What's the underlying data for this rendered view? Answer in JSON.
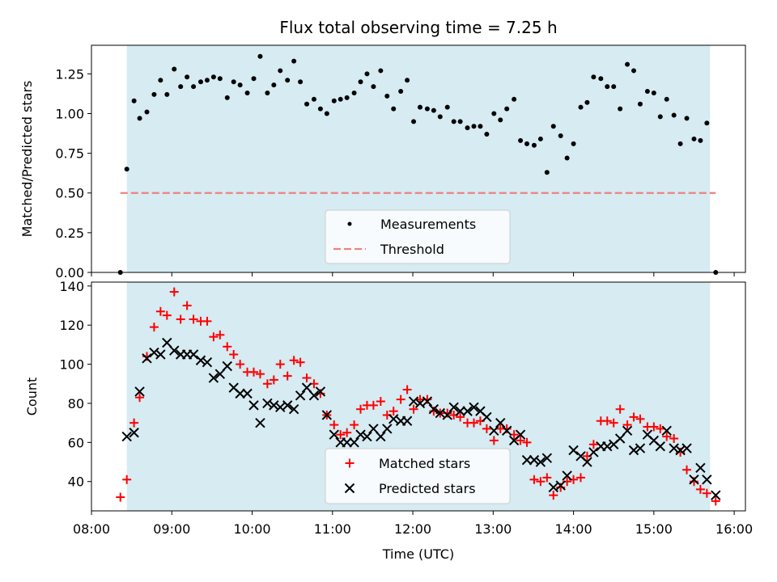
{
  "title": "Flux total observing time = 7.25 h",
  "colors": {
    "shade": "#add8e6",
    "threshold": "#f08080",
    "matched": "#ff0000",
    "predicted": "#000000",
    "measurement": "#000000"
  },
  "chart_data": [
    {
      "type": "scatter",
      "panel": "top",
      "ylabel": "Matched/Predicted stars",
      "ylim": [
        0,
        1.43
      ],
      "yticks": [
        0,
        0.25,
        0.5,
        0.75,
        1.0,
        1.25
      ],
      "ytick_labels": [
        "0.00",
        "0.25",
        "0.50",
        "0.75",
        "1.00",
        "1.25"
      ],
      "xlim": [
        8.0,
        16.14
      ],
      "shaded_span": [
        8.44,
        15.7
      ],
      "legend": {
        "position": "bottom-center",
        "entries": [
          "Measurements",
          "Threshold"
        ]
      },
      "threshold": {
        "name": "Threshold",
        "value": 0.5,
        "x_range": [
          8.36,
          15.77
        ]
      },
      "series": [
        {
          "name": "Measurements",
          "x": [
            8.36,
            8.44,
            8.53,
            8.6,
            8.69,
            8.78,
            8.86,
            8.94,
            9.03,
            9.11,
            9.19,
            9.27,
            9.36,
            9.44,
            9.52,
            9.6,
            9.69,
            9.77,
            9.85,
            9.94,
            10.02,
            10.1,
            10.19,
            10.27,
            10.35,
            10.44,
            10.52,
            10.6,
            10.68,
            10.77,
            10.85,
            10.93,
            11.02,
            11.1,
            11.18,
            11.27,
            11.35,
            11.43,
            11.51,
            11.6,
            11.68,
            11.76,
            11.85,
            11.93,
            12.01,
            12.09,
            12.18,
            12.26,
            12.34,
            12.43,
            12.51,
            12.59,
            12.68,
            12.76,
            12.84,
            12.92,
            13.01,
            13.09,
            13.17,
            13.26,
            13.34,
            13.42,
            13.51,
            13.59,
            13.67,
            13.75,
            13.84,
            13.92,
            14.0,
            14.09,
            14.17,
            14.25,
            14.34,
            14.42,
            14.5,
            14.58,
            14.67,
            14.75,
            14.83,
            14.92,
            15.0,
            15.08,
            15.16,
            15.25,
            15.33,
            15.41,
            15.5,
            15.58,
            15.66,
            15.77
          ],
          "values": [
            0.0,
            0.65,
            1.08,
            0.97,
            1.01,
            1.12,
            1.21,
            1.12,
            1.28,
            1.17,
            1.23,
            1.17,
            1.2,
            1.21,
            1.23,
            1.22,
            1.1,
            1.2,
            1.18,
            1.13,
            1.22,
            1.36,
            1.13,
            1.18,
            1.27,
            1.21,
            1.33,
            1.2,
            1.06,
            1.09,
            1.03,
            1.0,
            1.08,
            1.09,
            1.1,
            1.13,
            1.2,
            1.25,
            1.17,
            1.27,
            1.11,
            1.03,
            1.14,
            1.21,
            0.95,
            1.04,
            1.03,
            1.02,
            0.98,
            1.04,
            0.95,
            0.95,
            0.91,
            0.92,
            0.92,
            0.87,
            1.0,
            0.96,
            1.03,
            1.09,
            0.83,
            0.81,
            0.8,
            0.84,
            0.63,
            0.92,
            0.86,
            0.72,
            0.81,
            1.04,
            1.07,
            1.23,
            1.22,
            1.17,
            1.17,
            1.03,
            1.31,
            1.27,
            1.06,
            1.14,
            1.13,
            0.98,
            1.09,
            0.99,
            0.81,
            0.97,
            0.84,
            0.83,
            0.94,
            0.0
          ]
        }
      ]
    },
    {
      "type": "scatter",
      "panel": "bottom",
      "xlabel": "Time (UTC)",
      "ylabel": "Count",
      "ylim": [
        25,
        142
      ],
      "yticks": [
        40,
        60,
        80,
        100,
        120,
        140
      ],
      "ytick_labels": [
        "40",
        "60",
        "80",
        "100",
        "120",
        "140"
      ],
      "xlim": [
        8.0,
        16.14
      ],
      "xticks": [
        8,
        9,
        10,
        11,
        12,
        13,
        14,
        15,
        16
      ],
      "xtick_labels": [
        "08:00",
        "09:00",
        "10:00",
        "11:00",
        "12:00",
        "13:00",
        "14:00",
        "15:00",
        "16:00"
      ],
      "shaded_span": [
        8.44,
        15.7
      ],
      "legend": {
        "position": "bottom-center",
        "entries": [
          "Matched stars",
          "Predicted stars"
        ]
      },
      "series": [
        {
          "name": "Matched stars",
          "marker": "+",
          "x": [
            8.36,
            8.44,
            8.53,
            8.6,
            8.69,
            8.78,
            8.86,
            8.94,
            9.03,
            9.11,
            9.19,
            9.27,
            9.36,
            9.44,
            9.52,
            9.6,
            9.69,
            9.77,
            9.85,
            9.94,
            10.02,
            10.1,
            10.19,
            10.27,
            10.35,
            10.44,
            10.52,
            10.6,
            10.68,
            10.77,
            10.85,
            10.93,
            11.02,
            11.1,
            11.18,
            11.27,
            11.35,
            11.43,
            11.51,
            11.6,
            11.68,
            11.76,
            11.85,
            11.93,
            12.01,
            12.09,
            12.18,
            12.26,
            12.34,
            12.43,
            12.51,
            12.59,
            12.68,
            12.76,
            12.84,
            12.92,
            13.01,
            13.09,
            13.17,
            13.26,
            13.34,
            13.42,
            13.51,
            13.59,
            13.67,
            13.75,
            13.84,
            13.92,
            14.0,
            14.09,
            14.17,
            14.25,
            14.34,
            14.42,
            14.5,
            14.58,
            14.67,
            14.75,
            14.83,
            14.92,
            15.0,
            15.08,
            15.16,
            15.25,
            15.33,
            15.41,
            15.5,
            15.58,
            15.66,
            15.77
          ],
          "values": [
            32,
            41,
            70,
            83,
            104,
            119,
            127,
            125,
            137,
            123,
            130,
            123,
            122,
            122,
            114,
            115,
            109,
            105,
            100,
            96,
            96,
            95,
            90,
            92,
            100,
            94,
            102,
            101,
            93,
            90,
            85,
            74,
            69,
            64,
            65,
            69,
            77,
            79,
            79,
            81,
            74,
            76,
            82,
            87,
            77,
            82,
            82,
            76,
            75,
            75,
            74,
            73,
            70,
            70,
            71,
            67,
            61,
            67,
            67,
            64,
            61,
            60,
            41,
            40,
            42,
            33,
            37,
            40,
            41,
            42,
            53,
            59,
            71,
            71,
            70,
            77,
            69,
            73,
            72,
            68,
            68,
            67,
            63,
            62,
            55,
            46,
            40,
            36,
            34,
            30
          ]
        },
        {
          "name": "Predicted stars",
          "marker": "x",
          "x": [
            8.44,
            8.53,
            8.6,
            8.69,
            8.78,
            8.86,
            8.94,
            9.03,
            9.11,
            9.19,
            9.27,
            9.36,
            9.44,
            9.52,
            9.6,
            9.69,
            9.77,
            9.85,
            9.94,
            10.02,
            10.1,
            10.19,
            10.27,
            10.35,
            10.44,
            10.52,
            10.6,
            10.68,
            10.77,
            10.85,
            10.93,
            11.02,
            11.1,
            11.18,
            11.27,
            11.35,
            11.43,
            11.51,
            11.6,
            11.68,
            11.76,
            11.85,
            11.93,
            12.01,
            12.09,
            12.18,
            12.26,
            12.34,
            12.43,
            12.51,
            12.59,
            12.68,
            12.76,
            12.84,
            12.92,
            13.01,
            13.09,
            13.17,
            13.26,
            13.34,
            13.42,
            13.51,
            13.59,
            13.67,
            13.75,
            13.84,
            13.92,
            14.0,
            14.09,
            14.17,
            14.25,
            14.34,
            14.42,
            14.5,
            14.58,
            14.67,
            14.75,
            14.83,
            14.92,
            15.0,
            15.08,
            15.16,
            15.25,
            15.33,
            15.41,
            15.5,
            15.58,
            15.66,
            15.77
          ],
          "values": [
            63,
            65,
            86,
            103,
            106,
            105,
            111,
            107,
            105,
            105,
            105,
            102,
            101,
            93,
            95,
            99,
            88,
            85,
            85,
            79,
            70,
            80,
            79,
            78,
            79,
            77,
            84,
            88,
            84,
            86,
            74,
            64,
            60,
            60,
            60,
            64,
            63,
            67,
            63,
            67,
            72,
            71,
            71,
            81,
            80,
            81,
            77,
            75,
            74,
            78,
            76,
            76,
            78,
            76,
            73,
            66,
            70,
            66,
            61,
            64,
            51,
            51,
            50,
            52,
            37,
            38,
            43,
            56,
            53,
            50,
            55,
            58,
            58,
            59,
            62,
            66,
            56,
            57,
            64,
            61,
            58,
            66,
            57,
            56,
            57,
            41,
            47,
            41,
            33
          ]
        }
      ]
    }
  ]
}
